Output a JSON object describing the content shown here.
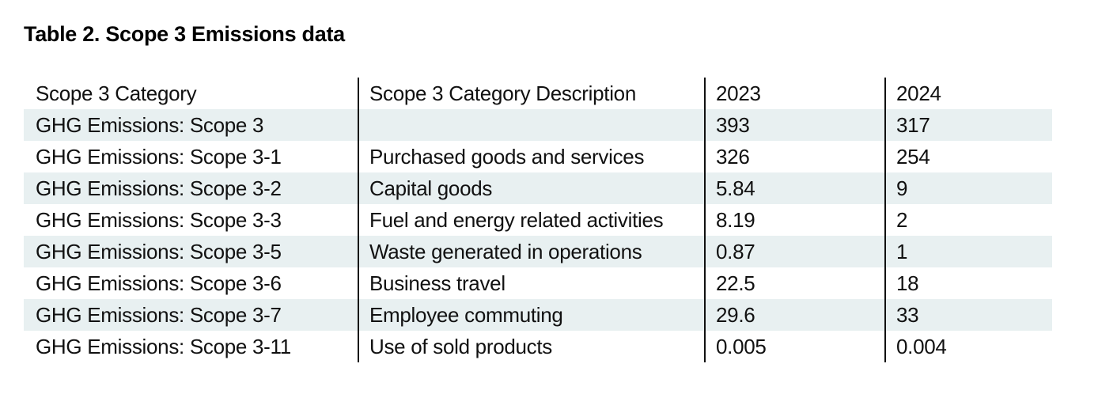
{
  "page": {
    "title": "Table 2. Scope 3 Emissions data"
  },
  "table": {
    "columns": [
      "Scope 3 Category",
      "Scope 3 Category Description",
      "2023",
      "2024"
    ],
    "rows": [
      {
        "category": "GHG Emissions: Scope 3",
        "description": "",
        "y2023": "393",
        "y2024": "317",
        "shaded": true
      },
      {
        "category": "GHG Emissions: Scope 3-1",
        "description": "Purchased goods and services",
        "y2023": "326",
        "y2024": "254",
        "shaded": false
      },
      {
        "category": "GHG Emissions: Scope 3-2",
        "description": "Capital goods",
        "y2023": "5.84",
        "y2024": "9",
        "shaded": true
      },
      {
        "category": "GHG Emissions: Scope 3-3",
        "description": "Fuel and energy related activities",
        "y2023": "8.19",
        "y2024": "2",
        "shaded": false
      },
      {
        "category": "GHG Emissions: Scope 3-5",
        "description": "Waste generated in operations",
        "y2023": "0.87",
        "y2024": "1",
        "shaded": true
      },
      {
        "category": "GHG Emissions: Scope 3-6",
        "description": "Business travel",
        "y2023": "22.5",
        "y2024": "18",
        "shaded": false
      },
      {
        "category": "GHG Emissions: Scope 3-7",
        "description": "Employee commuting",
        "y2023": "29.6",
        "y2024": "33",
        "shaded": true
      },
      {
        "category": "GHG Emissions: Scope 3-11",
        "description": "Use of sold products",
        "y2023": "0.005",
        "y2024": "0.004",
        "shaded": false
      }
    ]
  },
  "colors": {
    "background": "#ffffff",
    "row_shade": "#e8f0f1",
    "divider": "#111111",
    "text": "#111111"
  }
}
